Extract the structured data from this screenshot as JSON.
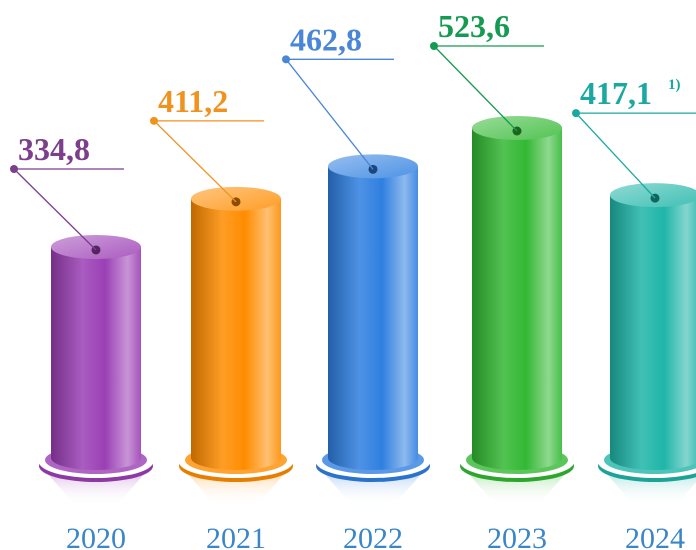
{
  "chart_data": {
    "type": "bar",
    "categories": [
      "2020",
      "2021",
      "2022",
      "2023",
      "2024"
    ],
    "values": [
      334.8,
      411.2,
      462.8,
      523.6,
      417.1
    ],
    "value_labels": [
      "334,8",
      "411,2",
      "462,8",
      "523,6",
      "417,1"
    ],
    "footnotes": [
      "",
      "",
      "",
      "",
      "1)"
    ],
    "colors": [
      "#9b3fb5",
      "#ff8c00",
      "#2f7fe0",
      "#33b833",
      "#1fb5a8"
    ],
    "label_colors": [
      "#7b3f8c",
      "#f0921e",
      "#4a86d8",
      "#159a52",
      "#1aa8a0"
    ],
    "title": "",
    "xlabel": "",
    "ylabel": "",
    "ylim": [
      0,
      523.6
    ],
    "grid": false
  }
}
